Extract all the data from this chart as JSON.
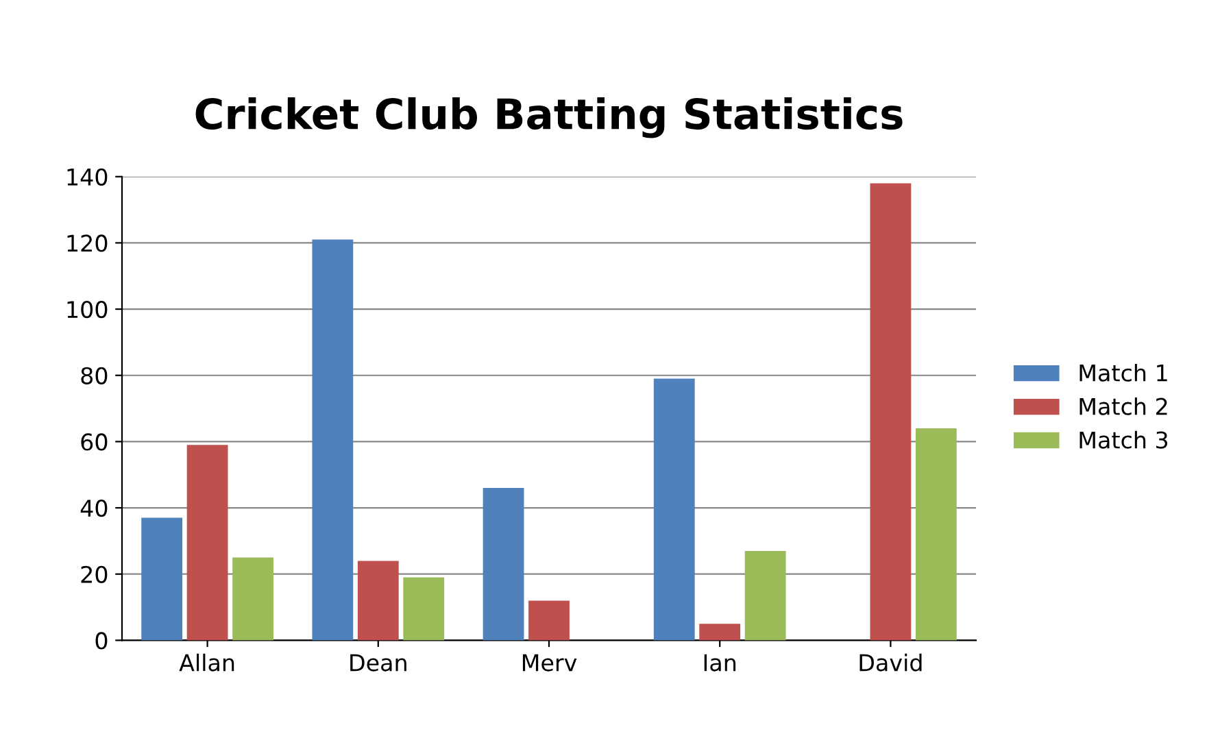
{
  "chart_data": {
    "type": "bar",
    "title": "Cricket Club Batting Statistics",
    "categories": [
      "Allan",
      "Dean",
      "Merv",
      "Ian",
      "David"
    ],
    "series": [
      {
        "name": "Match 1",
        "color": "#4f81bd",
        "values": [
          37,
          121,
          46,
          79,
          0
        ]
      },
      {
        "name": "Match 2",
        "color": "#c0504d",
        "values": [
          59,
          24,
          12,
          5,
          138
        ]
      },
      {
        "name": "Match 3",
        "color": "#9bbb59",
        "values": [
          25,
          19,
          0,
          27,
          64
        ]
      }
    ],
    "ylim": [
      0,
      140
    ],
    "yticks": [
      0,
      20,
      40,
      60,
      80,
      100,
      120,
      140
    ],
    "grid": "y",
    "legend": "right"
  }
}
